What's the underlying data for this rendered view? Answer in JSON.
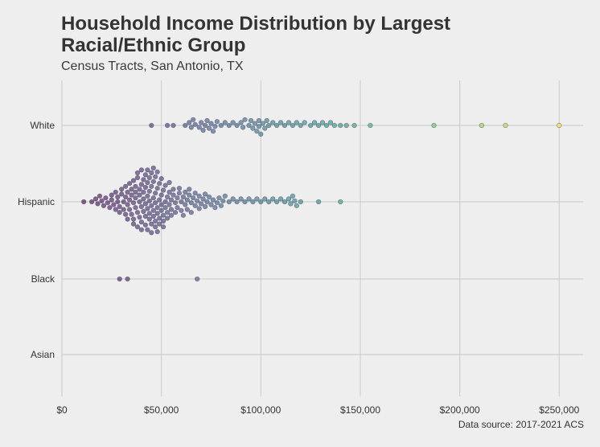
{
  "chart": {
    "title": "Household Income Distribution by Largest Racial/Ethnic Group",
    "subtitle": "Census Tracts, San Antonio, TX",
    "caption": "Data source: 2017-2021 ACS"
  },
  "chart_data": {
    "type": "scatter",
    "title": "Household Income Distribution by Largest Racial/Ethnic Group",
    "subtitle": "Census Tracts, San Antonio, TX",
    "xlabel": "",
    "ylabel": "",
    "xlim": [
      0,
      262000
    ],
    "x_ticks": [
      0,
      50000,
      100000,
      150000,
      200000,
      250000
    ],
    "x_tick_labels": [
      "$0",
      "$50,000",
      "$100,000",
      "$150,000",
      "$200,000",
      "$250,000"
    ],
    "categories": [
      "White",
      "Hispanic",
      "Black",
      "Asian"
    ],
    "grid": true,
    "legend": "none",
    "color_scale": [
      "#440154",
      "#3b528b",
      "#21918c",
      "#5ec962",
      "#fde725"
    ],
    "series": [
      {
        "category": "White",
        "values": [
          45000,
          53000,
          56000,
          62000,
          64000,
          65000,
          66000,
          67000,
          69000,
          70000,
          71000,
          72000,
          73000,
          74000,
          75000,
          76000,
          77000,
          78000,
          80000,
          82000,
          84000,
          86000,
          88000,
          90000,
          91000,
          92000,
          94000,
          95000,
          96000,
          97000,
          98000,
          99000,
          99000,
          100000,
          101000,
          102000,
          103000,
          104000,
          106000,
          108000,
          110000,
          112000,
          114000,
          116000,
          118000,
          120000,
          122000,
          125000,
          127000,
          129000,
          131000,
          133000,
          135000,
          137000,
          140000,
          143000,
          147000,
          155000,
          187000,
          211000,
          223000,
          250000
        ]
      },
      {
        "category": "Hispanic",
        "values": [
          11000,
          15000,
          17000,
          18000,
          19000,
          20000,
          21000,
          22000,
          23000,
          24000,
          25000,
          25000,
          26000,
          27000,
          27000,
          28000,
          28000,
          29000,
          29000,
          30000,
          30000,
          31000,
          31000,
          32000,
          32000,
          32000,
          33000,
          33000,
          33000,
          34000,
          34000,
          34000,
          35000,
          35000,
          35000,
          36000,
          36000,
          36000,
          36000,
          37000,
          37000,
          37000,
          37000,
          38000,
          38000,
          38000,
          38000,
          39000,
          39000,
          39000,
          39000,
          40000,
          40000,
          40000,
          40000,
          40000,
          41000,
          41000,
          41000,
          41000,
          42000,
          42000,
          42000,
          42000,
          42000,
          43000,
          43000,
          43000,
          43000,
          43000,
          44000,
          44000,
          44000,
          44000,
          44000,
          45000,
          45000,
          45000,
          45000,
          45000,
          46000,
          46000,
          46000,
          46000,
          46000,
          47000,
          47000,
          47000,
          47000,
          47000,
          48000,
          48000,
          48000,
          48000,
          48000,
          49000,
          49000,
          49000,
          49000,
          50000,
          50000,
          50000,
          50000,
          51000,
          51000,
          51000,
          51000,
          52000,
          52000,
          52000,
          53000,
          53000,
          53000,
          54000,
          54000,
          54000,
          55000,
          55000,
          55000,
          56000,
          56000,
          57000,
          57000,
          58000,
          58000,
          59000,
          59000,
          60000,
          60000,
          61000,
          61000,
          62000,
          62000,
          63000,
          63000,
          64000,
          64000,
          65000,
          65000,
          66000,
          67000,
          67000,
          68000,
          69000,
          69000,
          70000,
          71000,
          72000,
          72000,
          73000,
          74000,
          75000,
          76000,
          77000,
          78000,
          79000,
          80000,
          81000,
          82000,
          84000,
          86000,
          88000,
          90000,
          92000,
          94000,
          96000,
          98000,
          100000,
          102000,
          104000,
          106000,
          108000,
          110000,
          112000,
          114000,
          115000,
          116000,
          117000,
          118000,
          120000,
          129000,
          140000
        ]
      },
      {
        "category": "Black",
        "values": [
          29000,
          33000,
          68000
        ]
      },
      {
        "category": "Asian",
        "values": []
      }
    ]
  }
}
